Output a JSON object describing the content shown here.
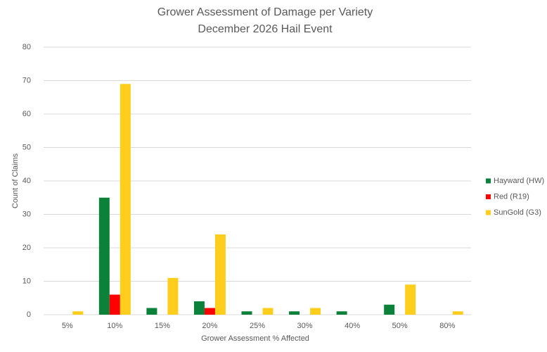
{
  "chart_data": {
    "type": "bar",
    "title": "Grower Assessment of Damage per Variety",
    "subtitle": "December 2026 Hail Event",
    "x_label": "Grower Assessment % Affected",
    "y_label": "Count of Claims",
    "categories": [
      "5%",
      "10%",
      "15%",
      "20%",
      "25%",
      "30%",
      "40%",
      "50%",
      "80%"
    ],
    "series": [
      {
        "name": "Hayward (HW)",
        "color": "#0b8139",
        "values": [
          null,
          35,
          2,
          4,
          1,
          1,
          1,
          3,
          null
        ]
      },
      {
        "name": "Red (R19)",
        "color": "#ff0000",
        "values": [
          null,
          6,
          null,
          2,
          null,
          null,
          null,
          null,
          null
        ]
      },
      {
        "name": "SunGold (G3)",
        "color": "#ffcd1c",
        "values": [
          1,
          69,
          11,
          24,
          2,
          2,
          null,
          9,
          1
        ]
      }
    ],
    "ylim": [
      0,
      80
    ],
    "yticks": [
      0,
      10,
      20,
      30,
      40,
      50,
      60,
      70,
      80
    ],
    "grid": true,
    "legend": "right"
  }
}
